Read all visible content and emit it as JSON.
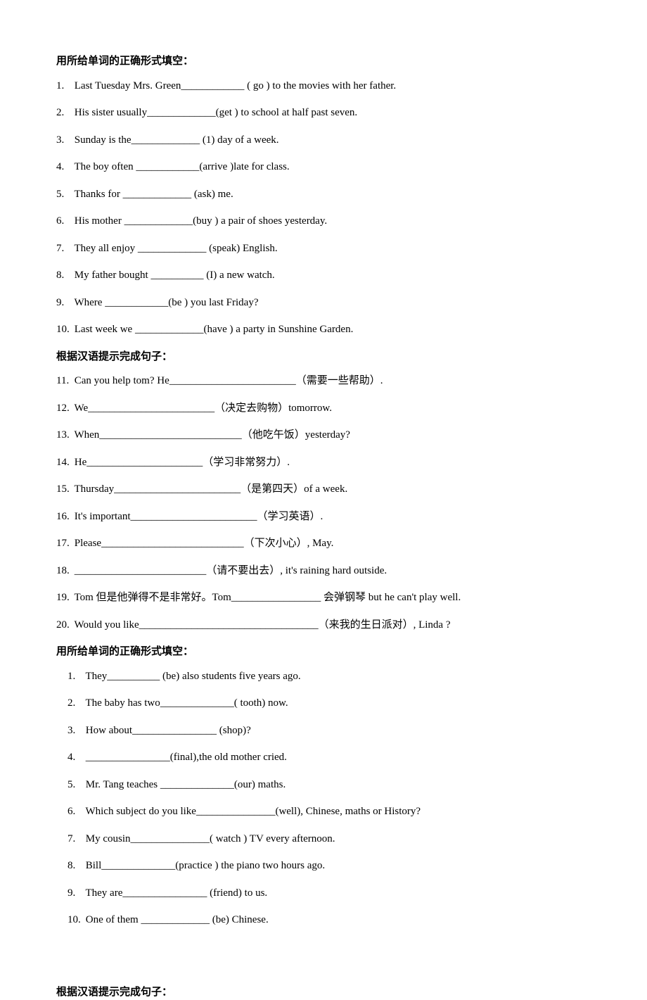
{
  "styles": {
    "page_bg": "#ffffff",
    "text_color": "#000000",
    "font_family": "Times New Roman, SimSun, serif",
    "font_size_pt": 11,
    "heading_weight": "bold",
    "line_spacing": 2.1
  },
  "sections": [
    {
      "heading": "用所给单词的正确形式填空：",
      "start": 1,
      "items": [
        "Last Tuesday Mrs. Green____________ ( go ) to the movies with her father.",
        "His sister usually_____________(get ) to school at half past seven.",
        "Sunday is the_____________ (1) day of a week.",
        "The boy often ____________(arrive )late for class.",
        "Thanks for _____________ (ask) me.",
        "His mother _____________(buy ) a pair of shoes yesterday.",
        "They all enjoy _____________ (speak) English.",
        "My father bought __________ (I) a new watch.",
        "Where ____________(be ) you last Friday?",
        "Last week we _____________(have ) a party in Sunshine Garden."
      ]
    },
    {
      "heading": "根据汉语提示完成句子：",
      "start": 11,
      "items": [
        "Can you help tom? He________________________（需要一些帮助）.",
        "We________________________（决定去购物）tomorrow.",
        "When___________________________（他吃午饭）yesterday?",
        "He______________________（学习非常努力）.",
        "Thursday________________________（是第四天）of a week.",
        "It's important________________________（学习英语）.",
        "Please___________________________（下次小心）, May.",
        "_________________________（请不要出去）, it's raining hard outside.",
        "Tom 但是他弹得不是非常好。Tom_________________ 会弹钢琴 but he can't play well.",
        "Would you like__________________________________（来我的生日派对）, Linda ?"
      ]
    },
    {
      "heading": "用所给单词的正确形式填空：",
      "start": 1,
      "indent": true,
      "items": [
        "They__________ (be) also students five years ago.",
        "The baby has two______________( tooth) now.",
        "How about________________ (shop)?",
        "________________(final),the old mother cried.",
        "Mr. Tang teaches ______________(our) maths.",
        "Which subject do you like_______________(well), Chinese, maths or History?",
        "My cousin_______________( watch ) TV every afternoon.",
        "Bill______________(practice ) the piano two hours ago.",
        "They are________________ (friend) to us.",
        "One of them _____________ (be) Chinese."
      ]
    }
  ],
  "footer_heading": "根据汉语提示完成句子："
}
